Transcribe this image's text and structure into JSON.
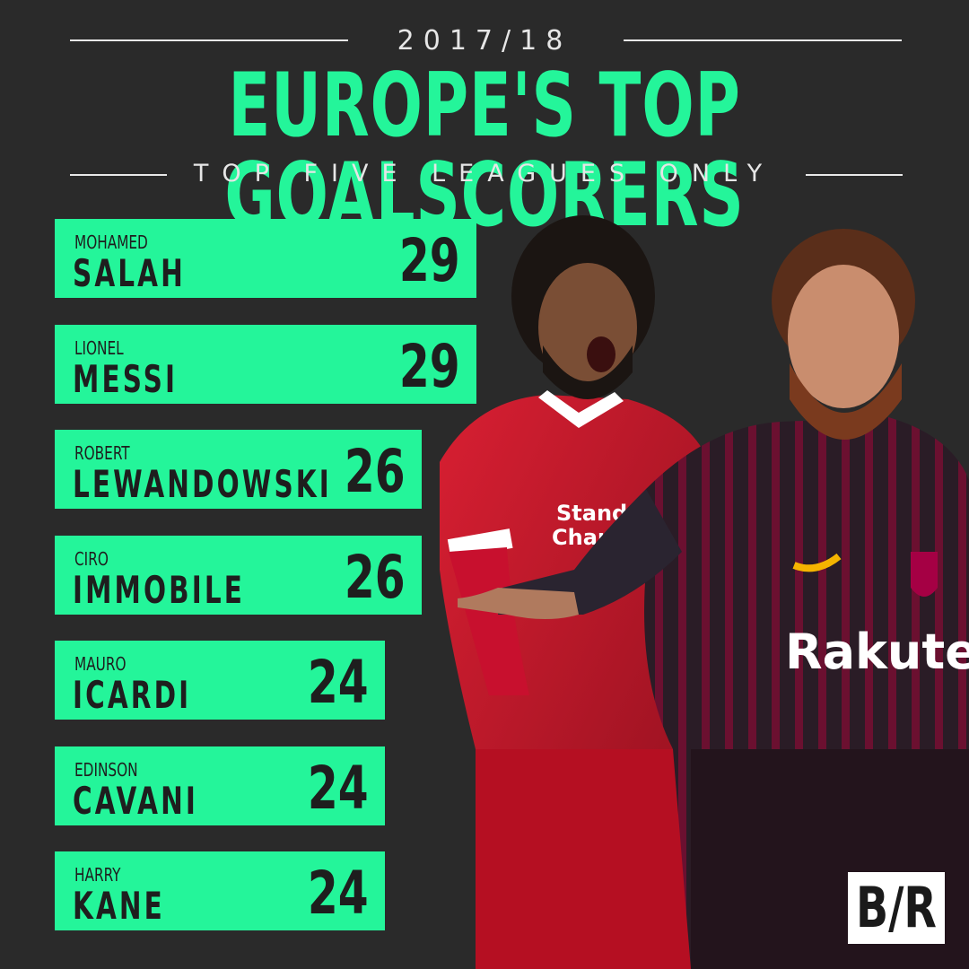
{
  "header": {
    "season": "2017/18",
    "title": "EUROPE'S TOP GOALSCORERS",
    "subtitle": "TOP FIVE LEAGUES ONLY"
  },
  "chart_data": {
    "type": "bar",
    "orientation": "horizontal",
    "title": "EUROPE'S TOP GOALSCORERS",
    "categories": [
      "SALAH",
      "MESSI",
      "LEWANDOWSKI",
      "IMMOBILE",
      "ICARDI",
      "CAVANI",
      "KANE"
    ],
    "first_names": [
      "MOHAMED",
      "LIONEL",
      "ROBERT",
      "CIRO",
      "MAURO",
      "EDINSON",
      "HARRY"
    ],
    "values": [
      29,
      29,
      26,
      26,
      24,
      24,
      24
    ],
    "labels": [
      "29",
      "29",
      "26",
      "26",
      "24",
      "24",
      "24"
    ],
    "bar_color": "#24f59a",
    "grid": false,
    "legend": "none"
  },
  "colors": {
    "background": "#2a2a2a",
    "accent": "#24f59a",
    "text_dark": "#1e1e1e",
    "liverpool_red": "#c8102e",
    "barca_garnet": "#6b1030"
  },
  "logo": {
    "text": "B/R"
  }
}
